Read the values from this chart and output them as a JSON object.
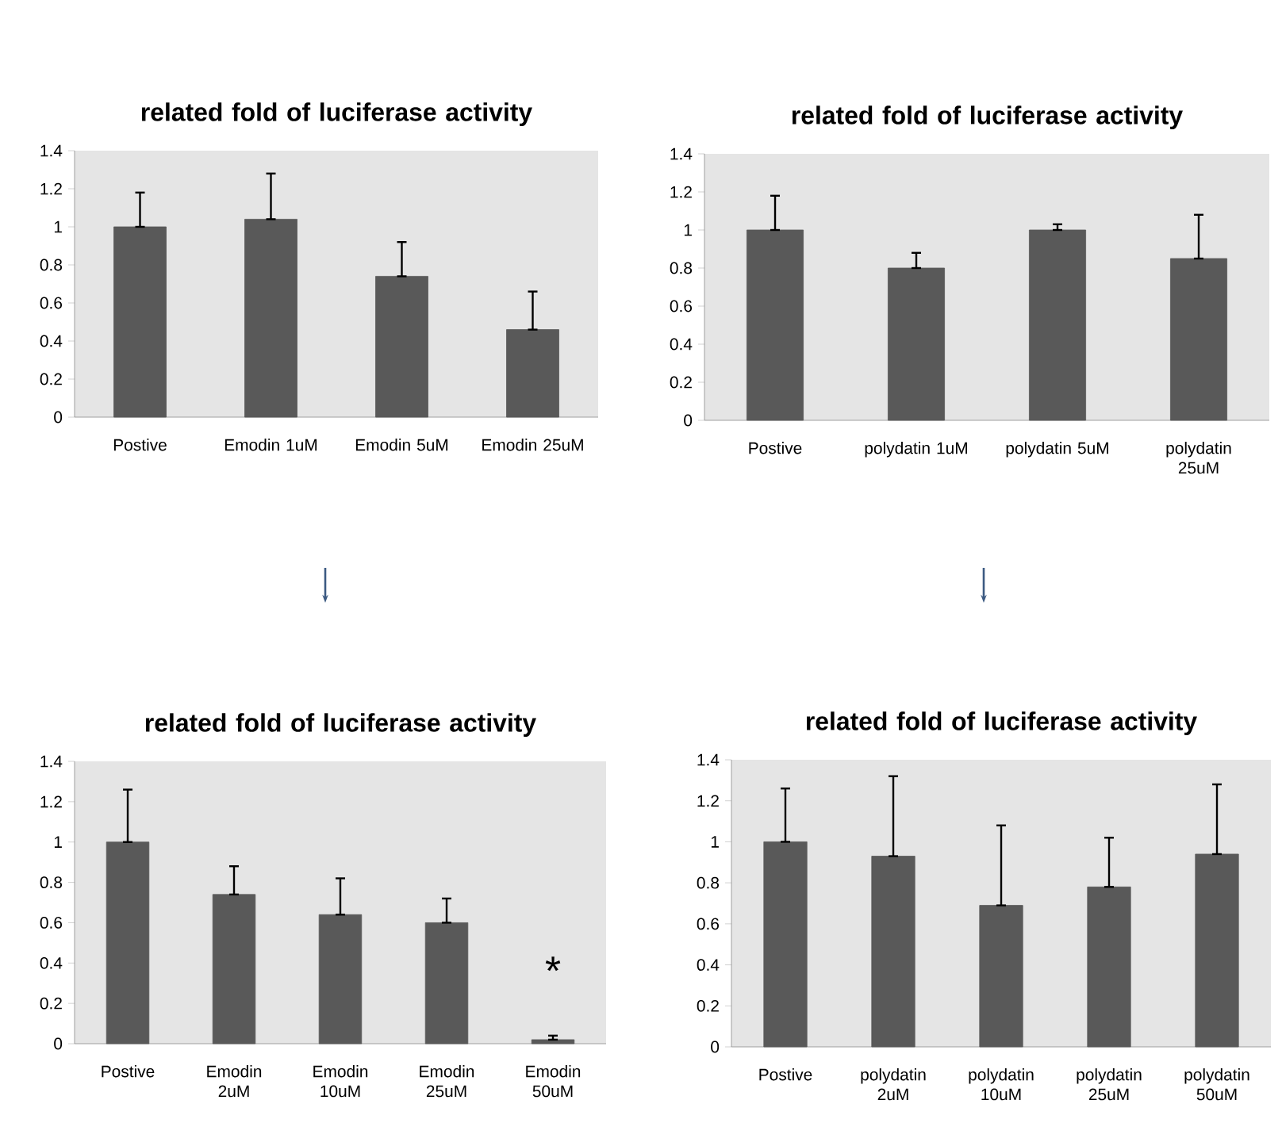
{
  "chart_data": [
    {
      "type": "bar",
      "title": "related fold of luciferase activity",
      "categories": [
        "Postive",
        "Emodin 1uM",
        "Emodin 5uM",
        "Emodin 25uM"
      ],
      "values": [
        1.0,
        1.04,
        0.74,
        0.46
      ],
      "errors": [
        [
          1.0,
          1.18
        ],
        [
          1.04,
          1.28
        ],
        [
          0.74,
          0.92
        ],
        [
          0.46,
          0.66
        ]
      ],
      "color": "#595959",
      "ylim": [
        0,
        1.4
      ],
      "yticks": [
        0,
        0.2,
        0.4,
        0.6,
        0.8,
        1,
        1.2,
        1.4
      ]
    },
    {
      "type": "bar",
      "title": "related fold of luciferase activity",
      "categories": [
        "Postive",
        "polydatin 1uM",
        "polydatin 5uM",
        "polydatin 25uM"
      ],
      "values": [
        1.0,
        0.8,
        1.0,
        0.85
      ],
      "errors": [
        [
          1.0,
          1.18
        ],
        [
          0.8,
          0.88
        ],
        [
          1.0,
          1.03
        ],
        [
          0.85,
          1.08
        ]
      ],
      "color": "#595959",
      "ylim": [
        0,
        1.4
      ],
      "yticks": [
        0,
        0.2,
        0.4,
        0.6,
        0.8,
        1,
        1.2,
        1.4
      ]
    },
    {
      "type": "bar",
      "title": "related fold of luciferase activity",
      "categories": [
        "Postive",
        "Emodin 2uM",
        "Emodin 10uM",
        "Emodin 25uM",
        "Emodin 50uM"
      ],
      "values": [
        1.0,
        0.74,
        0.64,
        0.6,
        0.02
      ],
      "errors": [
        [
          1.0,
          1.26
        ],
        [
          0.74,
          0.88
        ],
        [
          0.64,
          0.82
        ],
        [
          0.6,
          0.72
        ],
        [
          0.02,
          0.04
        ]
      ],
      "color": "#595959",
      "ylim": [
        0,
        1.4
      ],
      "yticks": [
        0,
        0.2,
        0.4,
        0.6,
        0.8,
        1,
        1.2,
        1.4
      ],
      "annotations": [
        "*"
      ]
    },
    {
      "type": "bar",
      "title": "related fold of luciferase activity",
      "categories": [
        "Postive",
        "polydatin 2uM",
        "polydatin 10uM",
        "polydatin 25uM",
        "polydatin 50uM"
      ],
      "values": [
        1.0,
        0.93,
        0.69,
        0.78,
        0.94
      ],
      "errors": [
        [
          1.0,
          1.26
        ],
        [
          0.93,
          1.32
        ],
        [
          0.69,
          1.08
        ],
        [
          0.78,
          1.02
        ],
        [
          0.94,
          1.28
        ]
      ],
      "color": "#595959",
      "ylim": [
        0,
        1.4
      ],
      "yticks": [
        0,
        0.2,
        0.4,
        0.6,
        0.8,
        1,
        1.2,
        1.4
      ]
    }
  ]
}
